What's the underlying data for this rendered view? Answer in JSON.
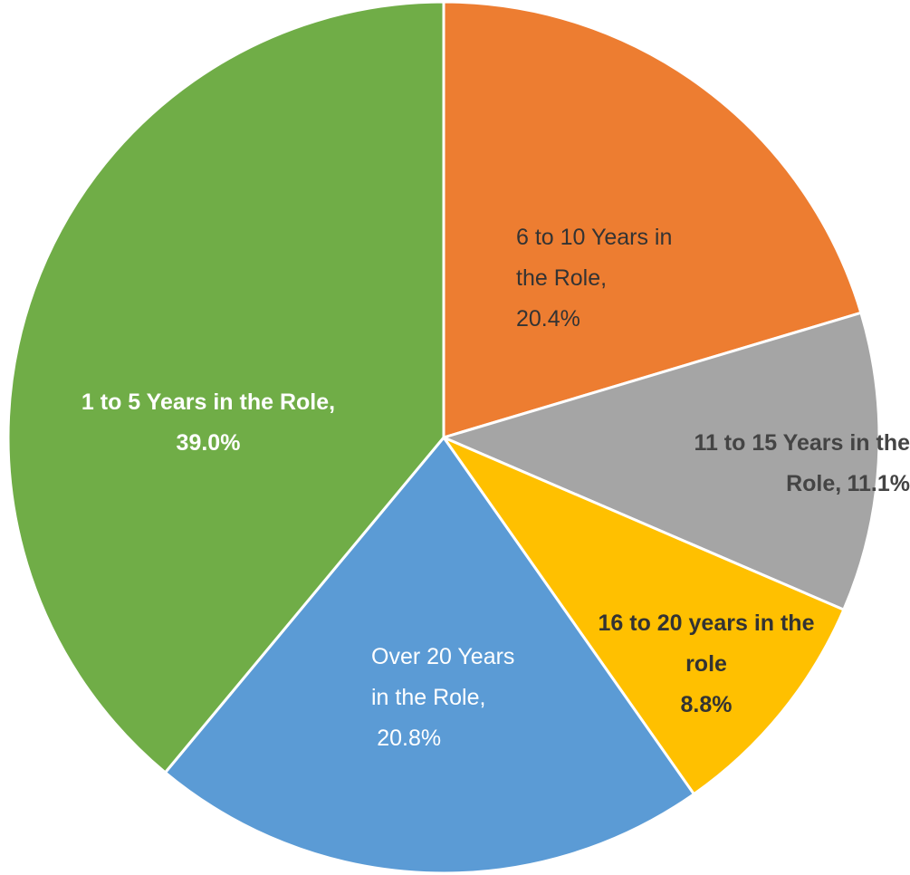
{
  "chart_data": {
    "type": "pie",
    "categories": [
      "6 to 10 Years in the Role,",
      "11 to 15 Years in the Role,",
      "16 to 20 years in the role",
      "Over 20 Years in the Role,",
      "1 to 5 Years in the Role,"
    ],
    "values": [
      20.4,
      11.1,
      8.8,
      20.8,
      39.0
    ],
    "value_labels": [
      "20.4%",
      "11.1%",
      "8.8%",
      "20.8%",
      "39.0%"
    ],
    "colors": [
      "#ED7D31",
      "#A5A5A5",
      "#FFC000",
      "#5B9BD5",
      "#70AD47"
    ]
  }
}
